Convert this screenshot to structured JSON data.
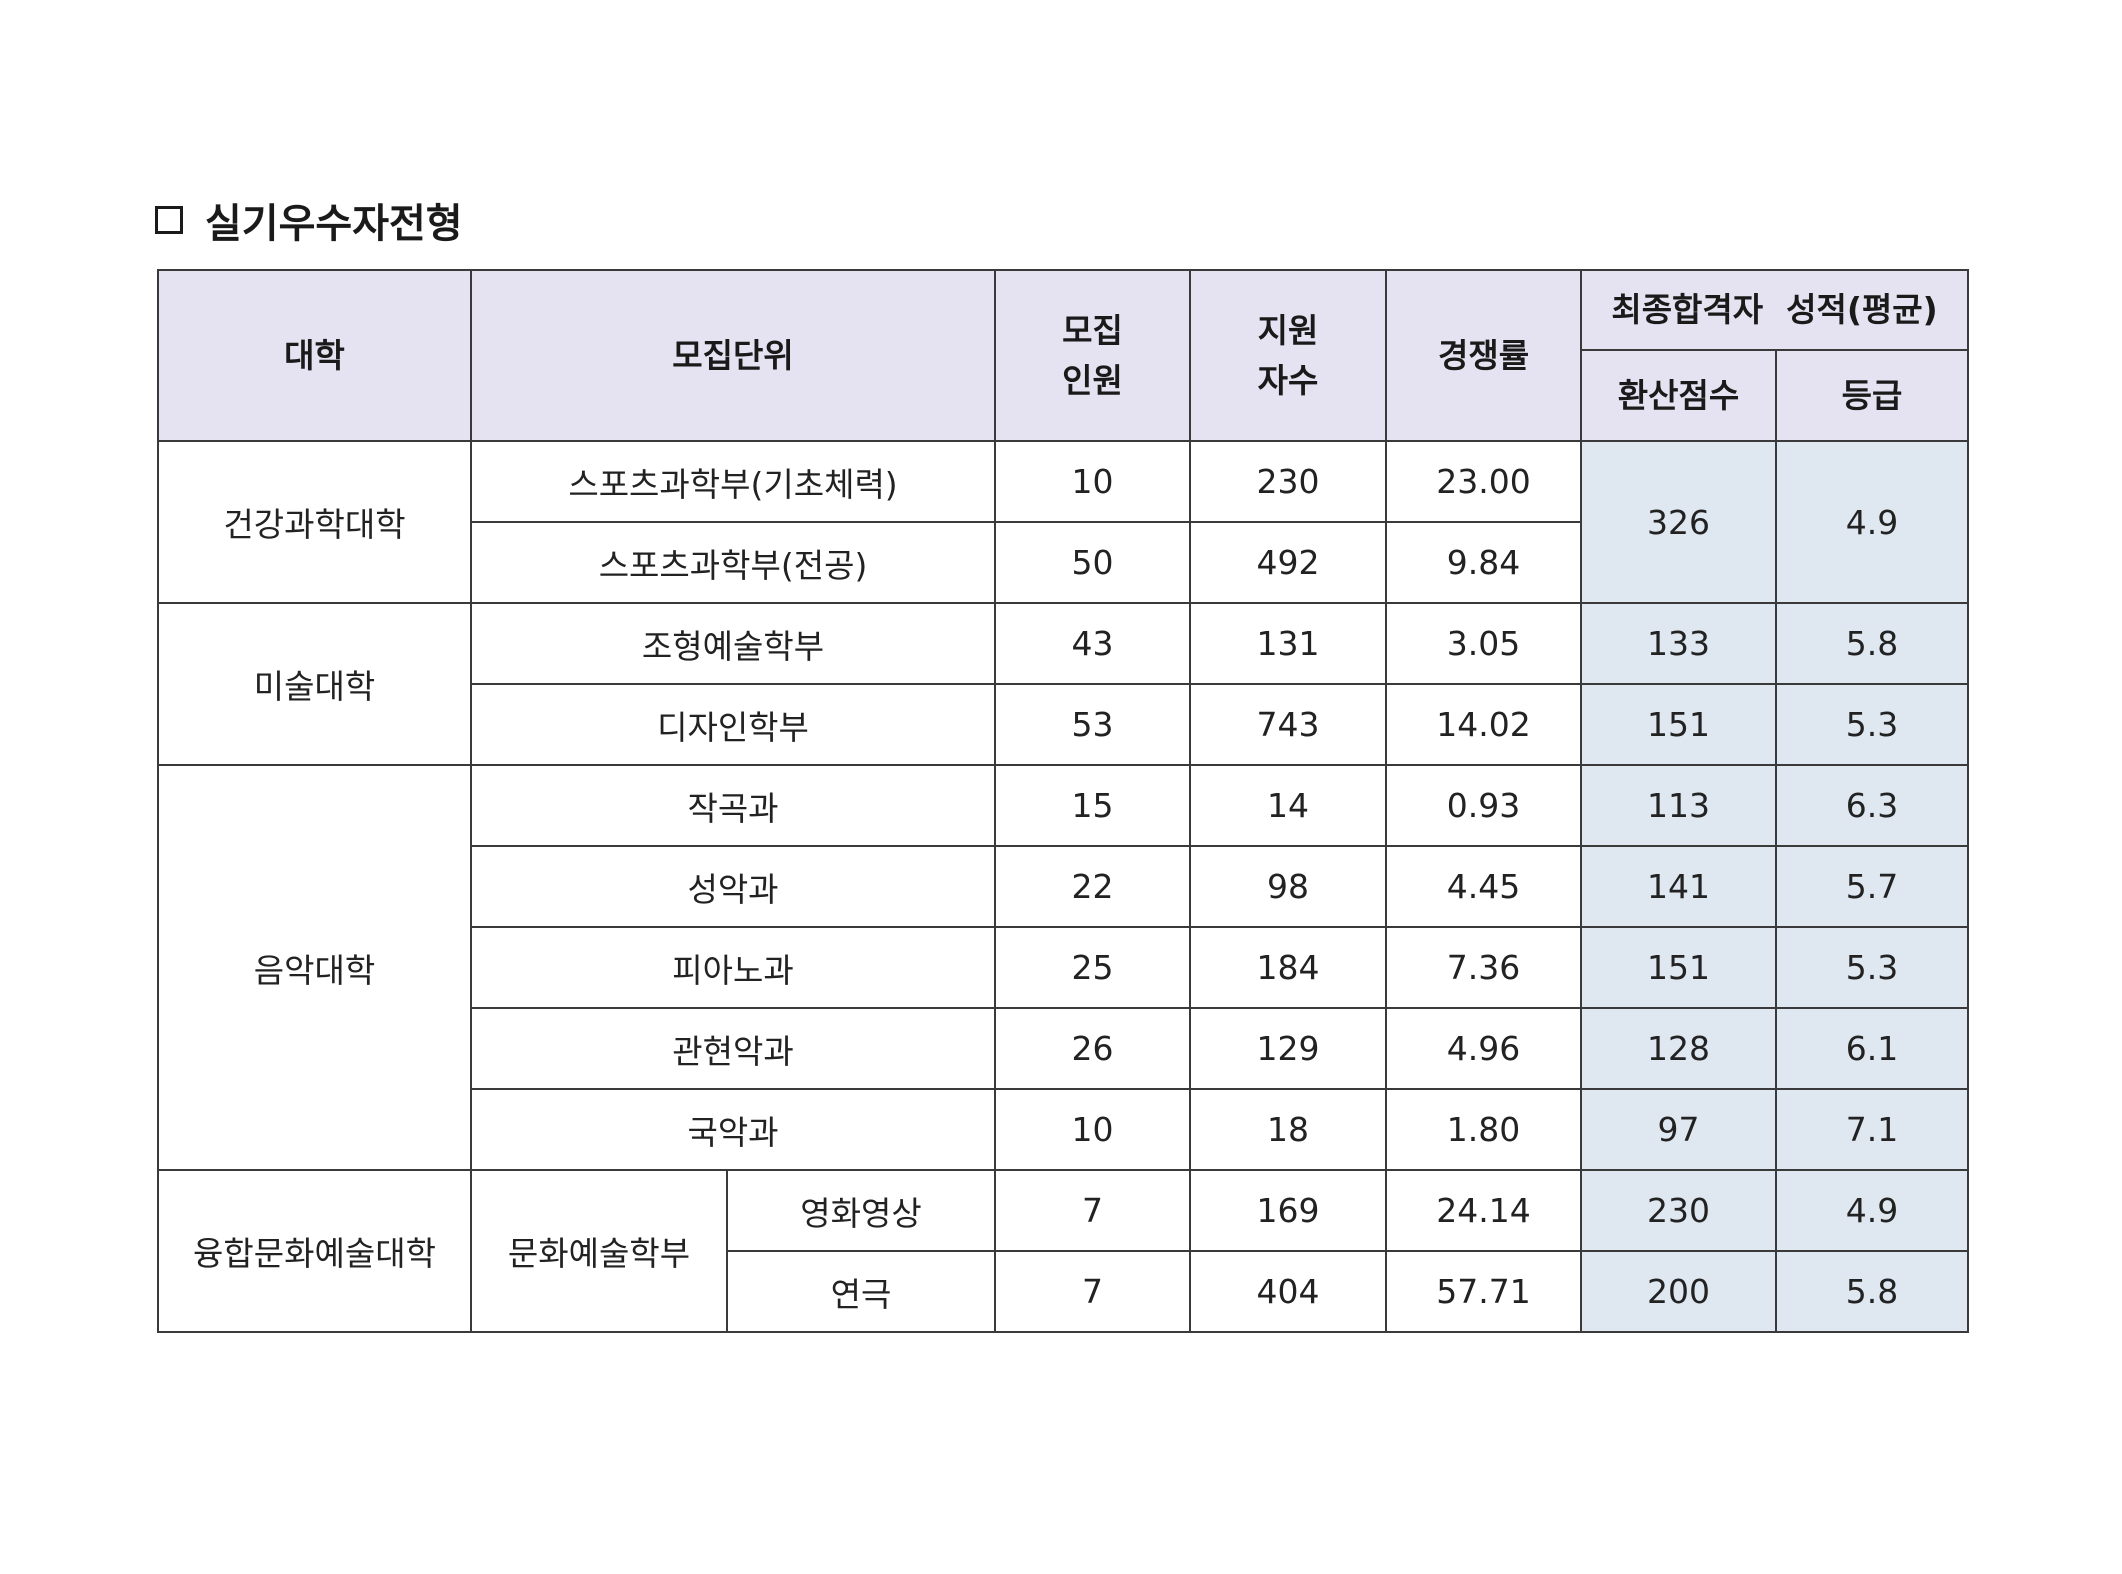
{
  "section": {
    "title": "실기우수자전형",
    "icon": "checkbox-empty-icon"
  },
  "table": {
    "headers": {
      "college": "대학",
      "unit": "모집단위",
      "quota_line1": "모집",
      "quota_line2": "인원",
      "applicants_line1": "지원",
      "applicants_line2": "자수",
      "rate": "경쟁률",
      "final_results": "최종합격자  성적(평균)",
      "score": "환산점수",
      "grade": "등급"
    },
    "colleges": [
      {
        "name": "건강과학대학",
        "rows": [
          {
            "unit": "스포츠과학부(기초체력)",
            "quota": "10",
            "applicants": "230",
            "rate": "23.00"
          },
          {
            "unit": "스포츠과학부(전공)",
            "quota": "50",
            "applicants": "492",
            "rate": "9.84"
          }
        ],
        "merged_score": "326",
        "merged_grade": "4.9"
      },
      {
        "name": "미술대학",
        "rows": [
          {
            "unit": "조형예술학부",
            "quota": "43",
            "applicants": "131",
            "rate": "3.05",
            "score": "133",
            "grade": "5.8"
          },
          {
            "unit": "디자인학부",
            "quota": "53",
            "applicants": "743",
            "rate": "14.02",
            "score": "151",
            "grade": "5.3"
          }
        ]
      },
      {
        "name": "음악대학",
        "rows": [
          {
            "unit": "작곡과",
            "quota": "15",
            "applicants": "14",
            "rate": "0.93",
            "score": "113",
            "grade": "6.3"
          },
          {
            "unit": "성악과",
            "quota": "22",
            "applicants": "98",
            "rate": "4.45",
            "score": "141",
            "grade": "5.7"
          },
          {
            "unit": "피아노과",
            "quota": "25",
            "applicants": "184",
            "rate": "7.36",
            "score": "151",
            "grade": "5.3"
          },
          {
            "unit": "관현악과",
            "quota": "26",
            "applicants": "129",
            "rate": "4.96",
            "score": "128",
            "grade": "6.1"
          },
          {
            "unit": "국악과",
            "quota": "10",
            "applicants": "18",
            "rate": "1.80",
            "score": "97",
            "grade": "7.1"
          }
        ]
      },
      {
        "name": "융합문화예술대학",
        "department": "문화예술학부",
        "rows": [
          {
            "unit": "영화영상",
            "quota": "7",
            "applicants": "169",
            "rate": "24.14",
            "score": "230",
            "grade": "4.9"
          },
          {
            "unit": "연극",
            "quota": "7",
            "applicants": "404",
            "rate": "57.71",
            "score": "200",
            "grade": "5.8"
          }
        ]
      }
    ]
  },
  "colors": {
    "header_bg": "#e5e3f1",
    "results_bg": "#dfe7f1",
    "border": "#3a3a3a"
  }
}
